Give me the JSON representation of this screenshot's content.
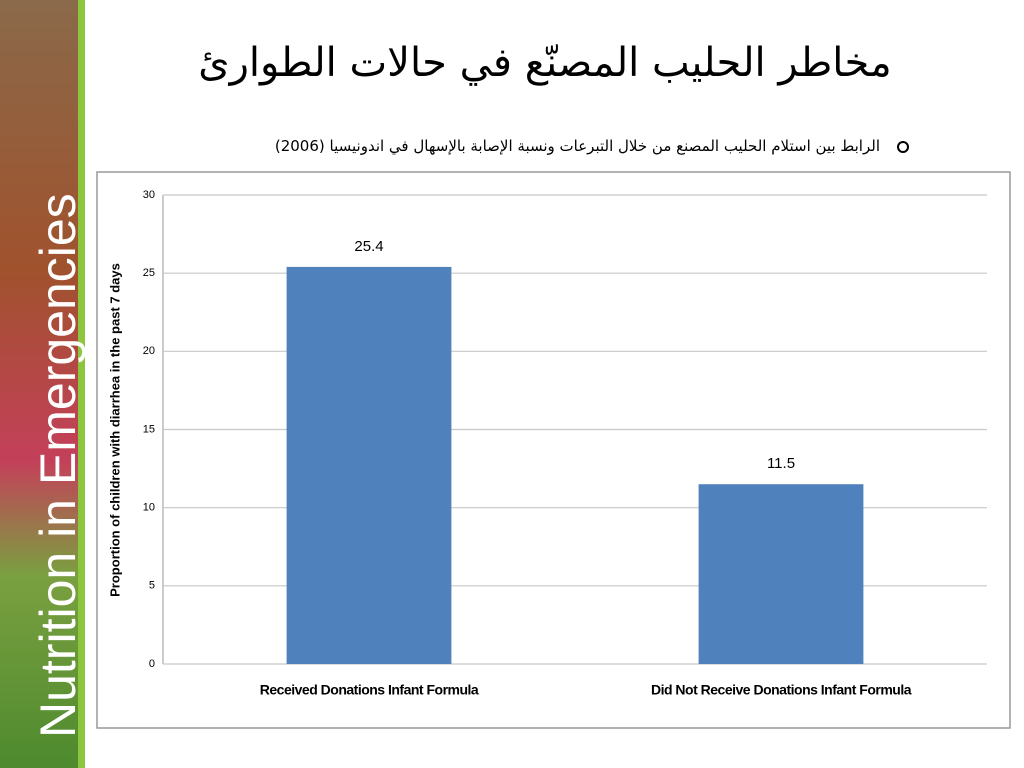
{
  "sidebar": {
    "text": "Nutrition in Emergencies"
  },
  "title": "مخاطر الحليب المصنّع في حالات الطوارئ",
  "bullet": "الرابط بين استلام الحليب المصنع من خلال التبرعات ونسبة الإصابة بالإسهال في اندونيسيا (2006)",
  "chart_data": {
    "type": "bar",
    "y_label": "Proportion of children with diarrhea in the past 7 days",
    "categories": [
      "Received Donations Infant Formula",
      "Did Not Receive Donations Infant Formula"
    ],
    "values": [
      25.4,
      11.5
    ],
    "color": "#4f81bd",
    "ylim": [
      0,
      30
    ],
    "yticks": [
      0,
      5,
      10,
      15,
      20,
      25,
      30
    ],
    "grid": true
  }
}
